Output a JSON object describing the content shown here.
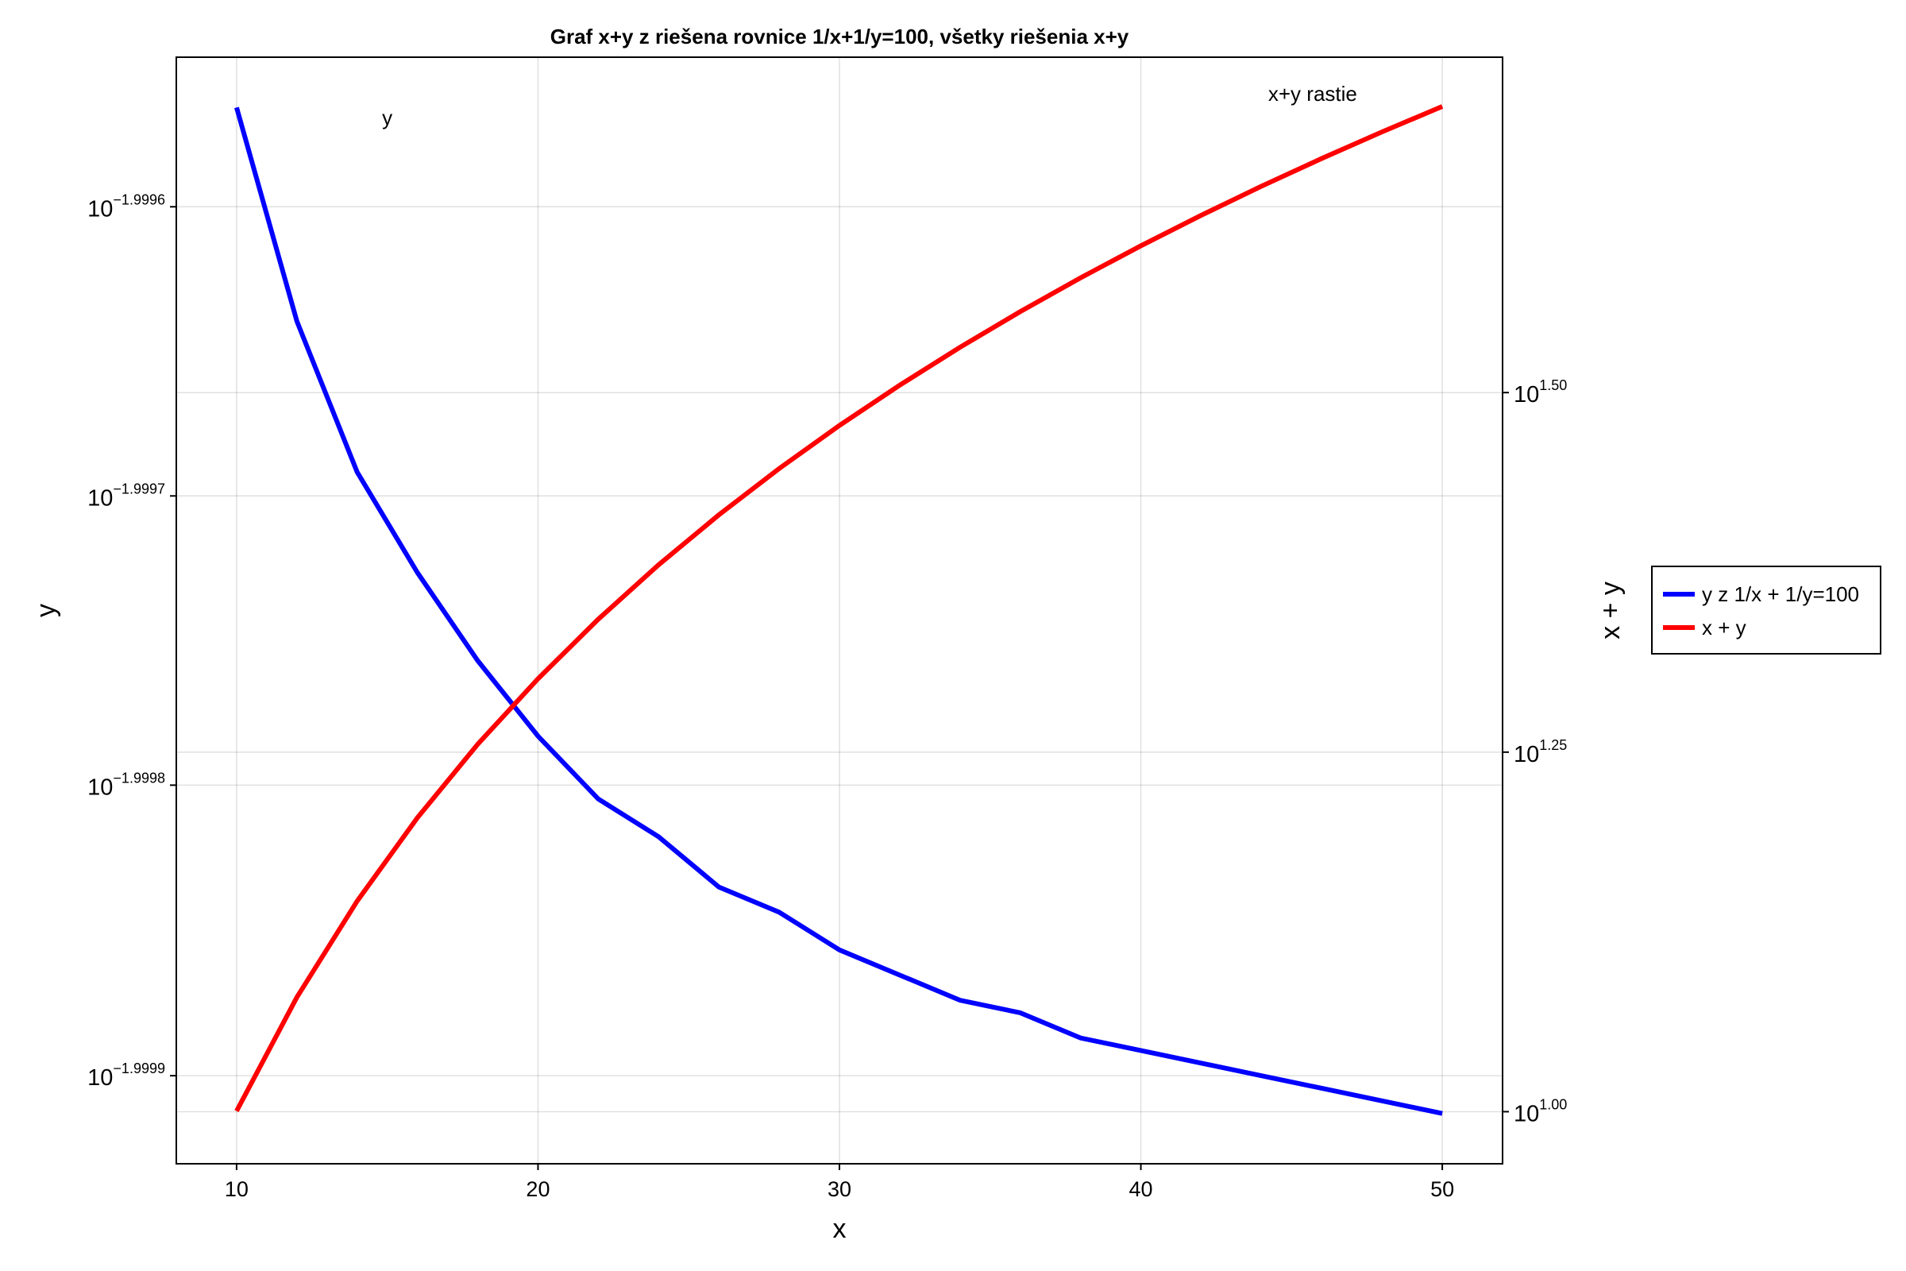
{
  "chart_data": {
    "type": "line",
    "title": "Graf x+y z riešena rovnice 1/x+1/y=100, všetky riešenia x+y",
    "xlabel": "x",
    "ylabel": "y",
    "y2label": "x + y",
    "x": [
      10,
      12,
      14,
      16,
      18,
      20,
      22,
      24,
      26,
      28,
      30,
      32,
      34,
      36,
      38,
      40,
      42,
      44,
      46,
      48,
      50
    ],
    "series": [
      {
        "name": "y z 1/x + 1/y=100",
        "color": "#0000ff",
        "axis": "y",
        "values": [
          0.01001,
          0.0100083,
          0.0100071,
          0.0100063,
          0.0100056,
          0.010005,
          0.0100045,
          0.0100042,
          0.0100038,
          0.0100036,
          0.0100033,
          0.0100031,
          0.0100029,
          0.0100028,
          0.0100026,
          0.0100025,
          0.0100024,
          0.0100023,
          0.0100022,
          0.0100021,
          0.010002
        ]
      },
      {
        "name": "x + y",
        "color": "#ff0000",
        "axis": "y2",
        "values": [
          10.01,
          12.01,
          14.01,
          16.01,
          18.01,
          20.0,
          22.0,
          24.0,
          26.0,
          28.0,
          30.0,
          32.0,
          34.0,
          36.0,
          38.0,
          40.0,
          42.0,
          44.0,
          46.0,
          48.0,
          50.0
        ]
      }
    ],
    "annotations": [
      {
        "text": "y",
        "color": "#0000ff"
      },
      {
        "text": "x+y rastie",
        "color": "#ff0000"
      }
    ],
    "xlim": [
      8,
      52
    ],
    "xticks": [
      10,
      20,
      30,
      40,
      50
    ],
    "ylim": [
      0.0100016,
      0.0100104
    ],
    "ylog": true,
    "yticks": [
      {
        "value": 0.01000921,
        "label": "10",
        "exponent": "−1.9996"
      },
      {
        "value": 0.01000691,
        "label": "10",
        "exponent": "−1.9997"
      },
      {
        "value": 0.01000461,
        "label": "10",
        "exponent": "−1.9998"
      },
      {
        "value": 0.0100023,
        "label": "10",
        "exponent": "−1.9999"
      }
    ],
    "y2lim": [
      9.2,
      54.1
    ],
    "y2log": true,
    "y2ticks": [
      {
        "value": 10,
        "label": "10",
        "exponent": "1.00"
      },
      {
        "value": 17.7828,
        "label": "10",
        "exponent": "1.25"
      },
      {
        "value": 31.6228,
        "label": "10",
        "exponent": "1.50"
      }
    ],
    "grid": true,
    "legend": "outside-right"
  }
}
